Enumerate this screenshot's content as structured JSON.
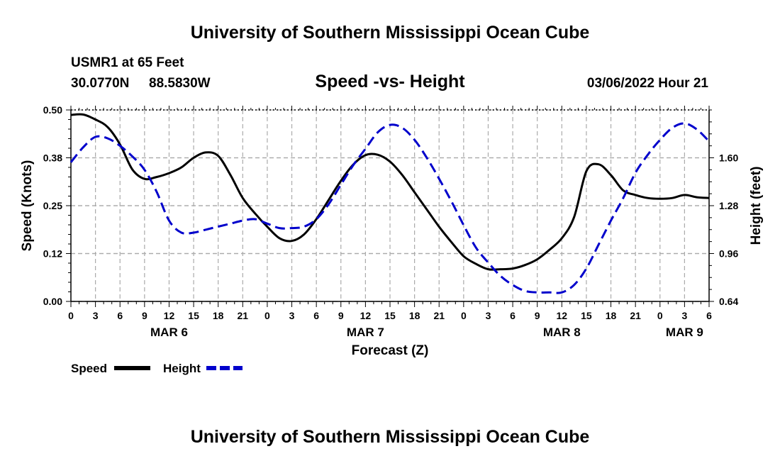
{
  "page": {
    "title": "University of Southern Mississippi Ocean Cube",
    "title_repeat": "University of Southern Mississippi Ocean Cube",
    "station": "USMR1 at 65 Feet",
    "lat": "30.0770N",
    "lon": "88.5830W",
    "subtitle": "Speed -vs- Height",
    "datetime": "03/06/2022 Hour 21"
  },
  "colors": {
    "speed": "#000000",
    "height": "#0000cc",
    "grid": "#aaaaaa"
  },
  "chart_data": {
    "type": "line",
    "title": "Speed -vs- Height",
    "xlabel": "Forecast (Z)",
    "ylabel": "Speed (Knots)",
    "y2label": "Height (feet)",
    "xlim": [
      0,
      78
    ],
    "ylim": [
      0,
      0.5
    ],
    "y2lim": [
      0.64,
      1.92
    ],
    "x_ticks": [
      0,
      3,
      6,
      9,
      12,
      15,
      18,
      21,
      24,
      27,
      30,
      33,
      36,
      39,
      42,
      45,
      48,
      51,
      54,
      57,
      60,
      63,
      66,
      69,
      72,
      75,
      78
    ],
    "x_tick_labels": [
      "0",
      "3",
      "6",
      "9",
      "12",
      "15",
      "18",
      "21",
      "0",
      "3",
      "6",
      "9",
      "12",
      "15",
      "18",
      "21",
      "0",
      "3",
      "6",
      "9",
      "12",
      "15",
      "18",
      "21",
      "0",
      "3",
      "6"
    ],
    "date_labels": [
      {
        "x": 12,
        "label": "MAR 6"
      },
      {
        "x": 36,
        "label": "MAR 7"
      },
      {
        "x": 60,
        "label": "MAR 8"
      },
      {
        "x": 75,
        "label": "MAR 9"
      }
    ],
    "y_ticks": [
      0.0,
      0.125,
      0.25,
      0.375,
      0.5
    ],
    "y_tick_labels": [
      "0.00",
      "0.12",
      "0.25",
      "0.38",
      "0.50"
    ],
    "y2_ticks": [
      0.64,
      0.96,
      1.28,
      1.6
    ],
    "y2_tick_labels": [
      "0.64",
      "0.96",
      "1.28",
      "1.60"
    ],
    "grid": true,
    "legend": {
      "position": "bottom-left",
      "entries": [
        "Speed",
        "Height"
      ]
    },
    "series": [
      {
        "name": "Speed",
        "axis": "left",
        "style": "solid",
        "x": [
          0,
          1.5,
          3,
          4.5,
          6,
          7.5,
          9,
          10.5,
          12,
          13.5,
          15,
          16.5,
          18,
          19.5,
          21,
          22.5,
          24,
          25.5,
          27,
          28.5,
          30,
          31.5,
          33,
          34.5,
          36,
          37.5,
          39,
          40.5,
          42,
          43.5,
          45,
          46.5,
          48,
          49.5,
          51,
          52.5,
          54,
          55.5,
          57,
          58.5,
          60,
          61.5,
          63,
          64.5,
          66,
          67.5,
          69,
          70.5,
          72,
          73.5,
          75,
          76.5,
          78
        ],
        "values": [
          0.487,
          0.488,
          0.475,
          0.455,
          0.41,
          0.345,
          0.32,
          0.325,
          0.335,
          0.35,
          0.375,
          0.389,
          0.38,
          0.33,
          0.27,
          0.23,
          0.195,
          0.165,
          0.158,
          0.175,
          0.215,
          0.265,
          0.315,
          0.357,
          0.382,
          0.383,
          0.365,
          0.33,
          0.285,
          0.24,
          0.195,
          0.155,
          0.118,
          0.098,
          0.084,
          0.084,
          0.086,
          0.095,
          0.11,
          0.135,
          0.165,
          0.22,
          0.34,
          0.358,
          0.33,
          0.29,
          0.278,
          0.27,
          0.268,
          0.27,
          0.278,
          0.272,
          0.27
        ]
      },
      {
        "name": "Height",
        "axis": "right",
        "style": "dashed",
        "x": [
          0,
          1.5,
          3,
          4.5,
          6,
          7.5,
          9,
          10.5,
          12,
          13.5,
          15,
          16.5,
          18,
          19.5,
          21,
          22.5,
          24,
          25.5,
          27,
          28.5,
          30,
          31.5,
          33,
          34.5,
          36,
          37.5,
          39,
          40.5,
          42,
          43.5,
          45,
          46.5,
          48,
          49.5,
          51,
          52.5,
          54,
          55.5,
          57,
          58.5,
          60,
          61.5,
          63,
          64.5,
          66,
          67.5,
          69,
          70.5,
          72,
          73.5,
          75,
          76.5,
          78
        ],
        "values": [
          1.57,
          1.67,
          1.74,
          1.73,
          1.68,
          1.61,
          1.52,
          1.37,
          1.18,
          1.1,
          1.1,
          1.12,
          1.14,
          1.16,
          1.18,
          1.19,
          1.16,
          1.13,
          1.13,
          1.14,
          1.19,
          1.29,
          1.42,
          1.55,
          1.66,
          1.77,
          1.82,
          1.8,
          1.72,
          1.6,
          1.46,
          1.31,
          1.15,
          1.0,
          0.9,
          0.81,
          0.75,
          0.71,
          0.7,
          0.7,
          0.7,
          0.75,
          0.86,
          1.02,
          1.18,
          1.33,
          1.5,
          1.62,
          1.72,
          1.8,
          1.83,
          1.79,
          1.71
        ]
      }
    ]
  }
}
